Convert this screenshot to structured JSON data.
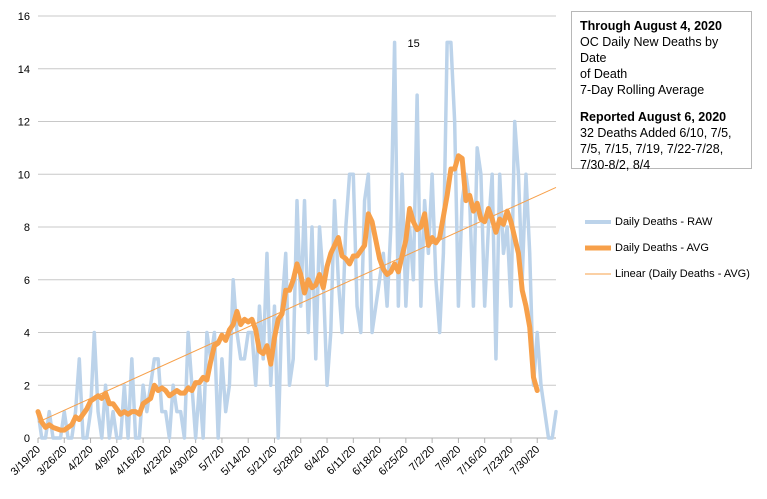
{
  "chart_data": {
    "type": "line",
    "title": "",
    "xlabel": "",
    "ylabel": "",
    "ylim": [
      0,
      16
    ],
    "y_ticks": [
      "0",
      "2",
      "4",
      "6",
      "8",
      "10",
      "12",
      "14",
      "16"
    ],
    "x_tick_labels": [
      "3/19/20",
      "3/26/20",
      "4/2/20",
      "4/9/20",
      "4/16/20",
      "4/23/20",
      "4/30/20",
      "5/7/20",
      "5/14/20",
      "5/21/20",
      "5/28/20",
      "6/4/20",
      "6/11/20",
      "6/18/20",
      "6/25/20",
      "7/2/20",
      "7/9/20",
      "7/16/20",
      "7/23/20",
      "7/30/20"
    ],
    "x_range": [
      0,
      138
    ],
    "peak_annotation": {
      "text": "15",
      "x_index": 95
    },
    "series": [
      {
        "name": "Daily Deaths - RAW",
        "color": "#bcd3ea",
        "values": [
          1,
          0,
          0,
          1,
          0,
          0,
          0,
          1,
          0,
          0,
          1,
          3,
          0,
          0,
          1,
          4,
          1,
          0,
          2,
          0,
          1,
          0,
          0,
          2,
          0,
          3,
          0,
          0,
          2,
          1,
          2,
          3,
          3,
          1,
          1,
          0,
          2,
          1,
          1,
          0,
          4,
          2,
          0,
          2,
          0,
          4,
          3,
          4,
          0,
          3,
          1,
          2,
          6,
          4,
          3,
          3,
          4,
          4,
          2,
          5,
          3,
          7,
          2,
          5,
          0,
          5,
          7,
          2,
          3,
          9,
          5,
          9,
          4,
          8,
          3,
          8,
          6,
          2,
          4,
          9,
          6,
          4,
          8,
          10,
          10,
          5,
          4,
          9,
          10,
          4,
          5,
          6,
          7,
          5,
          8,
          15,
          5,
          10,
          5,
          8,
          6,
          13,
          5,
          9,
          7,
          10,
          6,
          4,
          7,
          15,
          15,
          12,
          5,
          9,
          10,
          9,
          5,
          11,
          10,
          5,
          8,
          10,
          3,
          10,
          7,
          8,
          5,
          12,
          10,
          6,
          10,
          7,
          2,
          4,
          2,
          1,
          0,
          0,
          1
        ],
        "dates": [
          "3/19/20",
          "3/20/20",
          "3/21/20",
          "3/22/20",
          "3/23/20",
          "3/24/20",
          "3/25/20",
          "3/26/20",
          "3/27/20",
          "3/28/20",
          "3/29/20",
          "3/30/20",
          "3/31/20",
          "4/1/20",
          "4/2/20",
          "4/3/20",
          "4/4/20",
          "4/5/20",
          "4/6/20",
          "4/7/20",
          "4/8/20",
          "4/9/20",
          "4/10/20",
          "4/11/20",
          "4/12/20",
          "4/13/20",
          "4/14/20",
          "4/15/20",
          "4/16/20",
          "4/17/20",
          "4/18/20",
          "4/19/20",
          "4/20/20",
          "4/21/20",
          "4/22/20",
          "4/23/20",
          "4/24/20",
          "4/25/20",
          "4/26/20",
          "4/27/20",
          "4/28/20",
          "4/29/20",
          "4/30/20",
          "5/1/20",
          "5/2/20",
          "5/3/20",
          "5/4/20",
          "5/5/20",
          "5/6/20",
          "5/7/20",
          "5/8/20",
          "5/9/20",
          "5/10/20",
          "5/11/20",
          "5/12/20",
          "5/13/20",
          "5/14/20",
          "5/15/20",
          "5/16/20",
          "5/17/20",
          "5/18/20",
          "5/19/20",
          "5/20/20",
          "5/21/20",
          "5/22/20",
          "5/23/20",
          "5/24/20",
          "5/25/20",
          "5/26/20",
          "5/27/20",
          "5/28/20",
          "5/29/20",
          "5/30/20",
          "5/31/20",
          "6/1/20",
          "6/2/20",
          "6/3/20",
          "6/4/20",
          "6/5/20",
          "6/6/20",
          "6/7/20",
          "6/8/20",
          "6/9/20",
          "6/10/20",
          "6/11/20",
          "6/12/20",
          "6/13/20",
          "6/14/20",
          "6/15/20",
          "6/16/20",
          "6/17/20",
          "6/18/20",
          "6/19/20",
          "6/20/20",
          "6/21/20",
          "6/22/20",
          "6/23/20",
          "6/24/20",
          "6/25/20",
          "6/26/20",
          "6/27/20",
          "6/28/20",
          "6/29/20",
          "6/30/20",
          "7/1/20",
          "7/2/20",
          "7/3/20",
          "7/4/20",
          "7/5/20",
          "7/6/20",
          "7/7/20",
          "7/8/20",
          "7/9/20",
          "7/10/20",
          "7/11/20",
          "7/12/20",
          "7/13/20",
          "7/14/20",
          "7/15/20",
          "7/16/20",
          "7/17/20",
          "7/18/20",
          "7/19/20",
          "7/20/20",
          "7/21/20",
          "7/22/20",
          "7/23/20",
          "7/24/20",
          "7/25/20",
          "7/26/20",
          "7/27/20",
          "7/28/20",
          "7/29/20",
          "7/30/20",
          "7/31/20",
          "8/1/20",
          "8/2/20",
          "8/3/20",
          "8/4/20"
        ]
      },
      {
        "name": "Daily Deaths - AVG",
        "color": "#f7a04a",
        "values": [
          1.0,
          0.6,
          0.4,
          0.5,
          0.4,
          0.35,
          0.3,
          0.3,
          0.4,
          0.5,
          0.8,
          0.7,
          0.9,
          1.1,
          1.4,
          1.5,
          1.6,
          1.5,
          1.7,
          1.3,
          1.3,
          1.1,
          0.9,
          1.0,
          0.9,
          1.0,
          1.0,
          0.9,
          1.3,
          1.4,
          1.5,
          2.0,
          1.8,
          1.9,
          1.8,
          1.6,
          1.7,
          1.8,
          1.7,
          1.7,
          1.9,
          1.8,
          2.1,
          2.1,
          2.3,
          2.2,
          2.9,
          3.5,
          3.6,
          3.9,
          3.7,
          4.1,
          4.3,
          4.8,
          4.3,
          4.5,
          4.4,
          4.5,
          4.1,
          3.3,
          3.2,
          3.5,
          2.8,
          3.8,
          4.5,
          4.7,
          5.6,
          5.6,
          6.0,
          6.6,
          6.2,
          5.5,
          6.0,
          5.7,
          5.8,
          6.2,
          5.7,
          6.5,
          7.0,
          7.3,
          7.6,
          6.9,
          6.8,
          6.6,
          6.9,
          6.9,
          7.1,
          7.3,
          8.5,
          8.2,
          7.5,
          6.8,
          6.4,
          6.2,
          6.3,
          6.6,
          6.3,
          6.9,
          7.5,
          8.7,
          8.2,
          7.9,
          8.0,
          8.5,
          7.3,
          7.6,
          7.4,
          7.6,
          8.4,
          9.2,
          10.2,
          10.2,
          10.7,
          10.6,
          9.0,
          9.2,
          8.6,
          8.9,
          8.3,
          8.2,
          8.7,
          8.3,
          7.8,
          8.3,
          8.1,
          8.6,
          8.2,
          7.6,
          7.0,
          5.6,
          5.0,
          4.2,
          2.3,
          1.8
        ]
      },
      {
        "name": "Linear (Daily Deaths - AVG)",
        "color": "#f7a04a",
        "type": "trendline",
        "start": [
          0,
          0.6
        ],
        "end": [
          138,
          9.5
        ]
      }
    ]
  },
  "info_box": {
    "heading1": "Through August 4, 2020",
    "line1": "OC Daily New Deaths by Date",
    "line2": "of Death",
    "line3": "7-Day Rolling Average",
    "heading2": "Reported August 6, 2020",
    "line4": "32 Deaths Added 6/10, 7/5,",
    "line5": "7/5, 7/15, 7/19, 7/22-7/28,",
    "line6": "7/30-8/2, 8/4"
  },
  "legend": {
    "raw_label": "Daily Deaths - RAW",
    "avg_label": "Daily Deaths - AVG",
    "linear_label": "Linear (Daily Deaths - AVG)"
  }
}
